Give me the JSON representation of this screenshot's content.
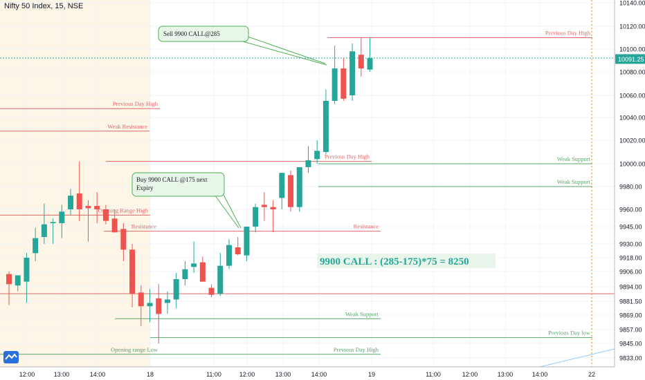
{
  "header": {
    "title": "Nifty 50 Index, 15, NSE"
  },
  "colors": {
    "up": "#26a69a",
    "down": "#ef5350",
    "resistance": "#e06666",
    "support": "#5aa469",
    "callout_bg": "#e8f5e9",
    "callout_border": "#4caf50",
    "highlight": "#e9f5ea"
  },
  "chart_data": {
    "type": "candlestick",
    "title": "Nifty 50 Index, 15, NSE",
    "xlabel": "",
    "ylabel": "",
    "ylim": [
      9826,
      10148
    ],
    "y_ticks": [
      10140,
      10120,
      10100,
      10080,
      10060,
      10040,
      10020,
      10000,
      9980,
      9960,
      9945,
      9930,
      9918,
      9906,
      9894,
      9881.5,
      9869,
      9857,
      9845,
      9833
    ],
    "x_ticks": [
      "12:00",
      "13:00",
      "14:00",
      "18",
      "11:00",
      "12:00",
      "13:00",
      "14:00",
      "19",
      "11:00",
      "12:00",
      "13:00",
      "14:00",
      "22"
    ],
    "last_price": "10091.25",
    "candles": [
      {
        "o": 9904,
        "h": 9906,
        "l": 9878,
        "c": 9896
      },
      {
        "o": 9895,
        "h": 9900,
        "l": 9890,
        "c": 9903
      },
      {
        "o": 9898,
        "h": 9922,
        "l": 9880,
        "c": 9918
      },
      {
        "o": 9922,
        "h": 9944,
        "l": 9915,
        "c": 9935
      },
      {
        "o": 9936,
        "h": 9965,
        "l": 9930,
        "c": 9947
      },
      {
        "o": 9948,
        "h": 9952,
        "l": 9930,
        "c": 9949
      },
      {
        "o": 9948,
        "h": 9964,
        "l": 9935,
        "c": 9958
      },
      {
        "o": 9960,
        "h": 9978,
        "l": 9955,
        "c": 9972
      },
      {
        "o": 9974,
        "h": 10002,
        "l": 9950,
        "c": 9960
      },
      {
        "o": 9963,
        "h": 9968,
        "l": 9932,
        "c": 9961
      },
      {
        "o": 9963,
        "h": 9975,
        "l": 9948,
        "c": 9960
      },
      {
        "o": 9960,
        "h": 9964,
        "l": 9947,
        "c": 9950
      },
      {
        "o": 9952,
        "h": 9960,
        "l": 9940,
        "c": 9940
      },
      {
        "o": 9943,
        "h": 9948,
        "l": 9915,
        "c": 9925
      },
      {
        "o": 9925,
        "h": 9930,
        "l": 9876,
        "c": 9888
      },
      {
        "o": 9889,
        "h": 9895,
        "l": 9860,
        "c": 9877
      },
      {
        "o": 9877,
        "h": 9892,
        "l": 9863,
        "c": 9880
      },
      {
        "o": 9884,
        "h": 9896,
        "l": 9845,
        "c": 9870
      },
      {
        "o": 9880,
        "h": 9890,
        "l": 9870,
        "c": 9883
      },
      {
        "o": 9883,
        "h": 9905,
        "l": 9875,
        "c": 9900
      },
      {
        "o": 9900,
        "h": 9915,
        "l": 9895,
        "c": 9908
      },
      {
        "o": 9910,
        "h": 9932,
        "l": 9905,
        "c": 9913
      },
      {
        "o": 9914,
        "h": 9919,
        "l": 9900,
        "c": 9898
      },
      {
        "o": 9893,
        "h": 9896,
        "l": 9885,
        "c": 9887
      },
      {
        "o": 9888,
        "h": 9922,
        "l": 9886,
        "c": 9911
      },
      {
        "o": 9911,
        "h": 9934,
        "l": 9908,
        "c": 9929
      },
      {
        "o": 9927,
        "h": 9936,
        "l": 9920,
        "c": 9921
      },
      {
        "o": 9920,
        "h": 9945,
        "l": 9915,
        "c": 9945
      },
      {
        "o": 9945,
        "h": 9965,
        "l": 9940,
        "c": 9962
      },
      {
        "o": 9964,
        "h": 9975,
        "l": 9950,
        "c": 9962
      },
      {
        "o": 9962,
        "h": 9968,
        "l": 9940,
        "c": 9960
      },
      {
        "o": 9970,
        "h": 9992,
        "l": 9960,
        "c": 9992
      },
      {
        "o": 9990,
        "h": 9994,
        "l": 9958,
        "c": 9962
      },
      {
        "o": 9962,
        "h": 9995,
        "l": 9958,
        "c": 9997
      },
      {
        "o": 9997,
        "h": 10015,
        "l": 9992,
        "c": 10003
      },
      {
        "o": 10004,
        "h": 10020,
        "l": 10000,
        "c": 10011
      },
      {
        "o": 10010,
        "h": 10065,
        "l": 10008,
        "c": 10055
      },
      {
        "o": 10055,
        "h": 10103,
        "l": 10052,
        "c": 10083
      },
      {
        "o": 10083,
        "h": 10092,
        "l": 10055,
        "c": 10057
      },
      {
        "o": 10060,
        "h": 10105,
        "l": 10055,
        "c": 10098
      },
      {
        "o": 10095,
        "h": 10110,
        "l": 10076,
        "c": 10083
      },
      {
        "o": 10082,
        "h": 10110,
        "l": 10080,
        "c": 10092
      }
    ],
    "levels": [
      {
        "label": "Previous Day High",
        "price": 10048,
        "from": 0,
        "to": 231,
        "kind": "res"
      },
      {
        "label": "Weak Resistance",
        "price": 10028,
        "from": 0,
        "to": 216,
        "kind": "res"
      },
      {
        "label": "Opening Range High",
        "price": 9955,
        "from": 0,
        "to": 217,
        "kind": "res"
      },
      {
        "label": "Resistance",
        "price": 9941,
        "from": 150,
        "to": 229,
        "kind": "res"
      },
      {
        "label": "Resistance",
        "price": 9941,
        "from": 229,
        "to": 550,
        "kind": "res"
      },
      {
        "label": "Previous Day High",
        "price": 10002,
        "from": 153,
        "to": 537,
        "kind": "res"
      },
      {
        "label": "Previous Day High",
        "price": 10110,
        "from": 473,
        "to": 856,
        "kind": "res"
      },
      {
        "label": "Weak Support",
        "price": 10000,
        "from": 460,
        "to": 856,
        "kind": "sup"
      },
      {
        "label": "Weak Support",
        "price": 9980,
        "from": 460,
        "to": 856,
        "kind": "sup"
      },
      {
        "label": "Weak Support",
        "price": 9866,
        "from": 166,
        "to": 550,
        "kind": "sup"
      },
      {
        "label": "Previous Day low",
        "price": 9850,
        "from": 217,
        "to": 856,
        "kind": "sup"
      },
      {
        "label": "Opening range Low",
        "price": 9836,
        "from": 0,
        "to": 231,
        "kind": "sup"
      },
      {
        "label": "Previous Day High",
        "price": 9836,
        "from": 231,
        "to": 550,
        "kind": "sup"
      },
      {
        "label": "",
        "price": 10148,
        "from": 0,
        "to": 856,
        "kind": "res"
      },
      {
        "label": "",
        "price": 9888,
        "from": 0,
        "to": 888,
        "kind": "res"
      }
    ],
    "annotations": [
      {
        "text": "Sell 9900 CALL@285",
        "price": 10135
      },
      {
        "text": "Buy 9900 CALL @175 next Expiry",
        "price": 9985
      },
      {
        "text": "9900 CALL : (285-175)*75 = 8250",
        "price": 9918
      }
    ]
  }
}
